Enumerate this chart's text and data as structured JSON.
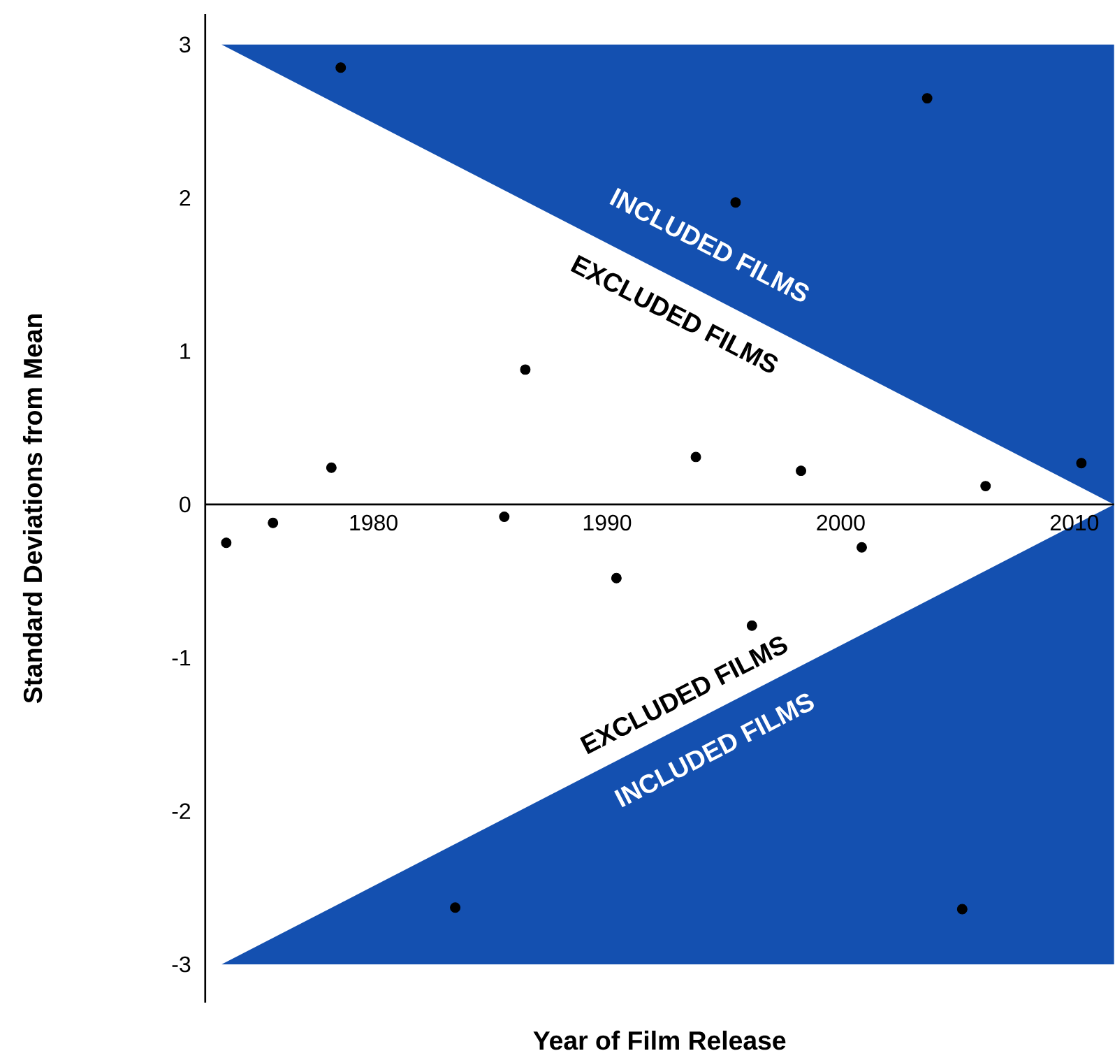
{
  "chart_data": {
    "type": "scatter",
    "xlabel": "Year of Film Release",
    "ylabel": "Standard Deviations from Mean",
    "xlim": [
      1972.8,
      2011.7
    ],
    "ylim": [
      -3.25,
      3.2
    ],
    "xticks": [
      1980,
      1990,
      2000,
      2010
    ],
    "yticks": [
      -3,
      -2,
      -1,
      0,
      1,
      2,
      3
    ],
    "grid": false,
    "series": [
      {
        "type": "area",
        "color": "#1450b0",
        "x": [
          1973.5,
          2011.7,
          2011.7
        ],
        "values": [
          3,
          0,
          3
        ]
      },
      {
        "type": "area",
        "color": "#1450b0",
        "x": [
          1973.5,
          2011.7,
          2011.7
        ],
        "values": [
          -3,
          0,
          -3
        ]
      },
      {
        "marker": "circle",
        "color": "#000000",
        "x": [
          1973.7,
          1975.7,
          1978.2,
          1978.6,
          1983.5,
          1985.6,
          1986.5,
          1990.4,
          1993.8,
          1995.5,
          1996.2,
          1998.3,
          2000.9,
          2003.7,
          2005.2,
          2006.2,
          2010.3
        ],
        "values": [
          -0.25,
          -0.12,
          0.24,
          2.85,
          -2.63,
          -0.08,
          0.88,
          -0.48,
          0.31,
          1.97,
          -0.79,
          0.22,
          -0.28,
          2.65,
          -2.64,
          0.12,
          0.27
        ]
      }
    ],
    "annotations": [
      "INCLUDED FILMS",
      "EXCLUDED FILMS",
      "EXCLUDED FILMS",
      "INCLUDED FILMS"
    ]
  }
}
